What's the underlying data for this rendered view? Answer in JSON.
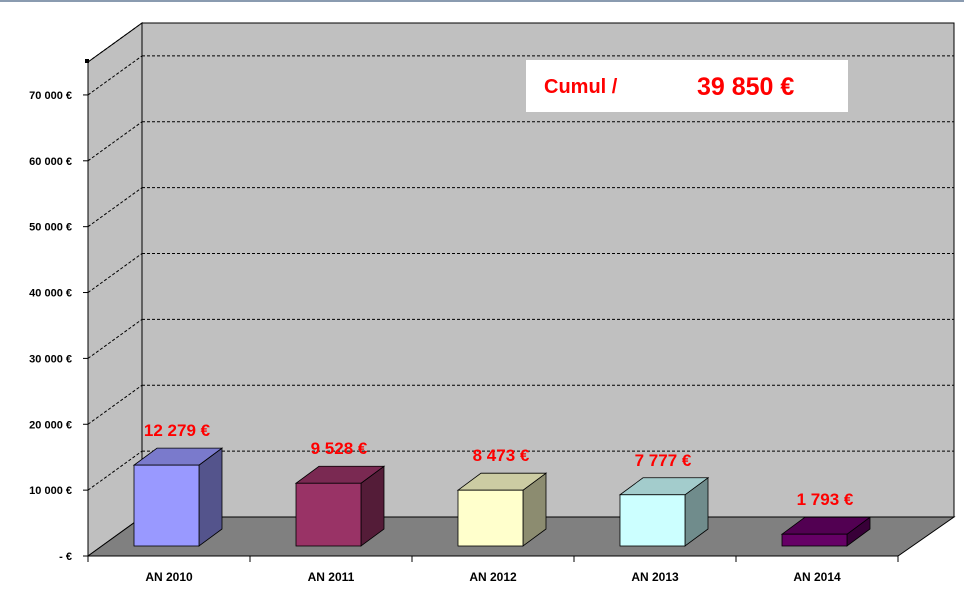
{
  "chart_data": {
    "type": "bar",
    "categories": [
      "AN 2010",
      "AN 2011",
      "AN 2012",
      "AN 2013",
      "AN 2014"
    ],
    "values": [
      12279,
      9528,
      8473,
      7777,
      1793
    ],
    "data_labels": [
      "12 279 €",
      "9 528 €",
      "8 473 €",
      "7 777 €",
      "1 793 €"
    ],
    "y_ticks": [
      {
        "value": 0,
        "label": "-   €"
      },
      {
        "value": 10000,
        "label": "10 000 €"
      },
      {
        "value": 20000,
        "label": "20 000 €"
      },
      {
        "value": 30000,
        "label": "30 000 €"
      },
      {
        "value": 40000,
        "label": "40 000 €"
      },
      {
        "value": 50000,
        "label": "50 000 €"
      },
      {
        "value": 60000,
        "label": "60 000 €"
      },
      {
        "value": 70000,
        "label": "70 000 €"
      }
    ],
    "ylim": [
      0,
      75000
    ],
    "grid": true,
    "three_d": true,
    "bar_colors": [
      "#9999ff",
      "#993366",
      "#ffffcc",
      "#ccffff",
      "#660066"
    ],
    "wall_color": "#c0c0c0",
    "floor_color": "#808080",
    "title": "",
    "xlabel": "",
    "ylabel": ""
  },
  "annotation": {
    "label": "Cumul /",
    "value": "39 850 €"
  }
}
